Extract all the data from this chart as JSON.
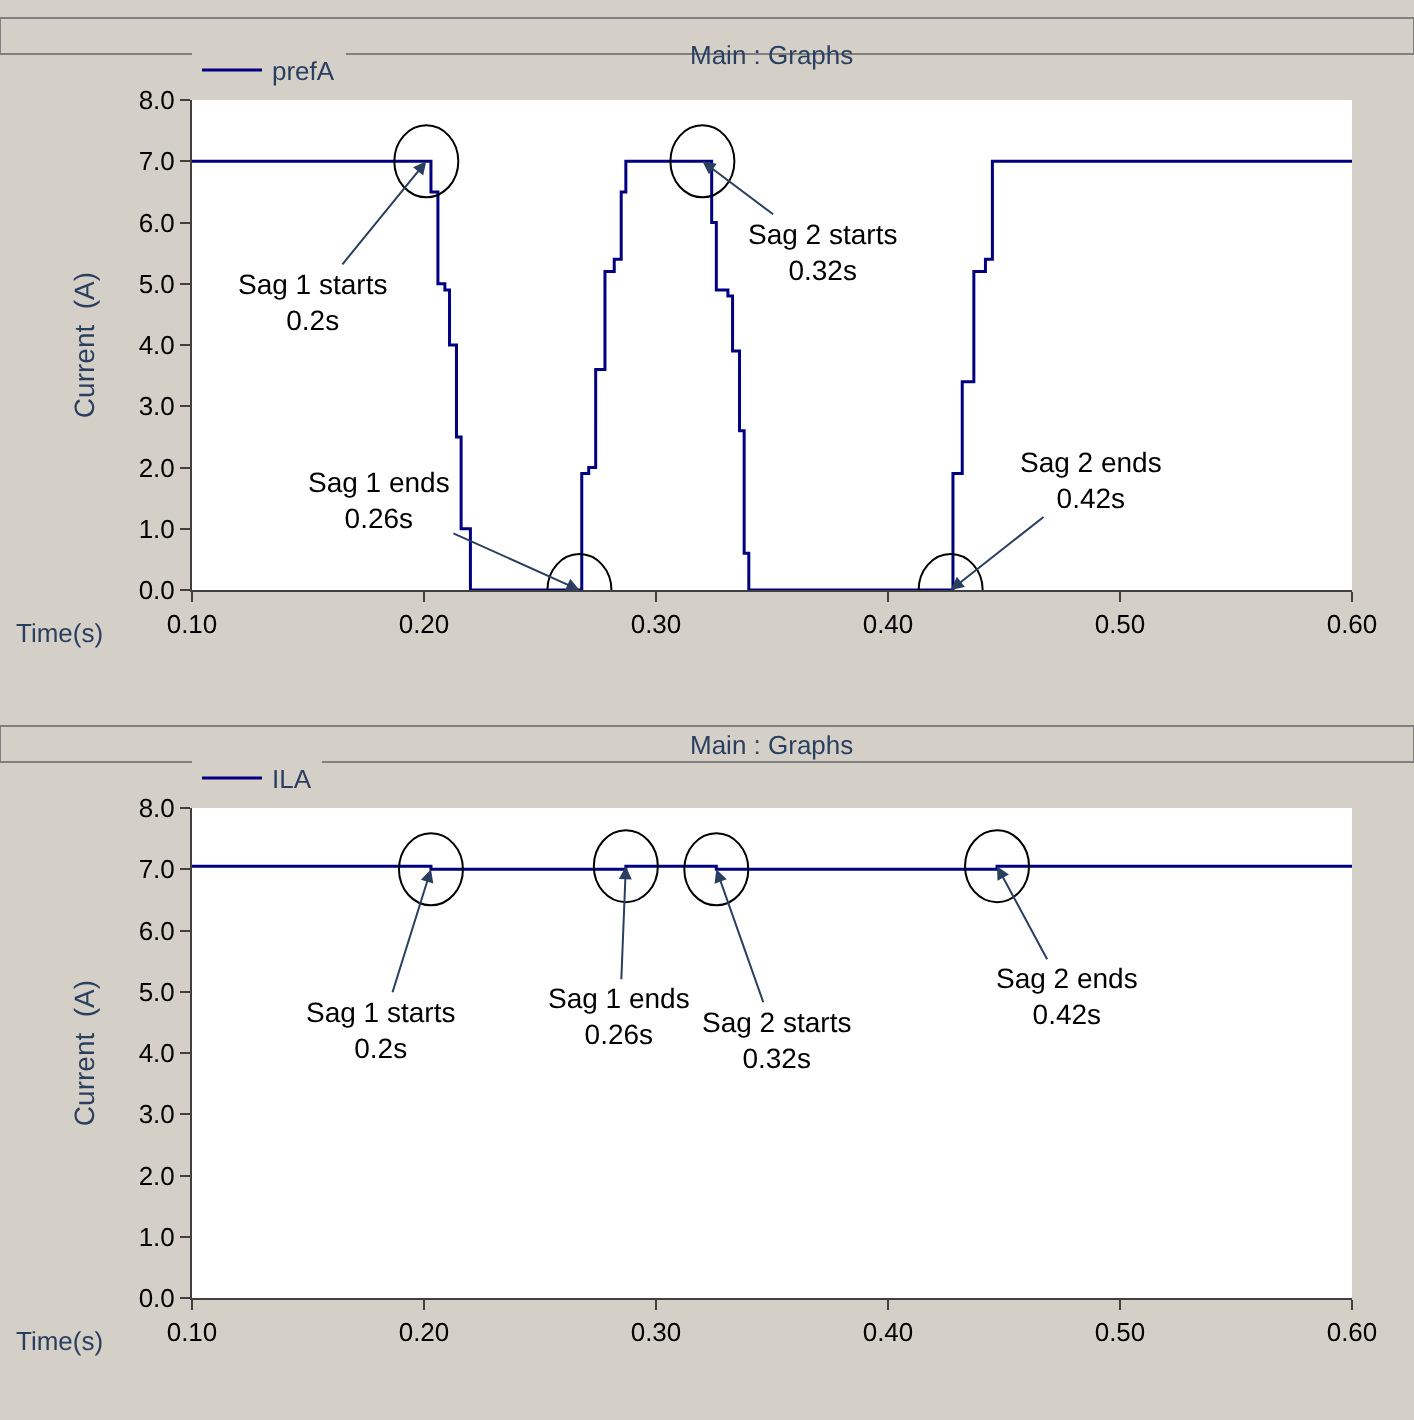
{
  "chart_data": [
    {
      "type": "step",
      "title": "Main : Graphs",
      "xlabel": "Time(s)",
      "ylabel": "Current  (A)",
      "legend": "top left",
      "x": [
        0.1,
        0.201,
        0.203,
        0.206,
        0.209,
        0.211,
        0.214,
        0.216,
        0.22,
        0.267,
        0.268,
        0.271,
        0.274,
        0.278,
        0.282,
        0.285,
        0.287,
        0.32,
        0.324,
        0.326,
        0.331,
        0.333,
        0.336,
        0.338,
        0.34,
        0.427,
        0.428,
        0.432,
        0.437,
        0.442,
        0.445,
        0.6
      ],
      "series": [
        {
          "name": "prefA",
          "color": "#000080",
          "values": [
            7.0,
            7.0,
            6.5,
            5.0,
            4.9,
            4.0,
            2.5,
            1.0,
            0.0,
            0.0,
            1.9,
            2.0,
            3.6,
            5.2,
            5.4,
            6.5,
            7.0,
            7.0,
            6.0,
            4.9,
            4.8,
            3.9,
            2.6,
            0.6,
            0.0,
            0.0,
            1.9,
            3.4,
            5.2,
            5.4,
            7.0,
            7.0
          ]
        }
      ],
      "xlim": [
        0.1,
        0.6
      ],
      "xticks": [
        {
          "value": 0.1,
          "label": "0.10"
        },
        {
          "value": 0.2,
          "label": "0.20"
        },
        {
          "value": 0.3,
          "label": "0.30"
        },
        {
          "value": 0.4,
          "label": "0.40"
        },
        {
          "value": 0.5,
          "label": "0.50"
        },
        {
          "value": 0.6,
          "label": "0.60"
        }
      ],
      "ylim": [
        0,
        8
      ],
      "yticks": [
        {
          "value": 0,
          "label": "0.0"
        },
        {
          "value": 1,
          "label": "1.0"
        },
        {
          "value": 2,
          "label": "2.0"
        },
        {
          "value": 3,
          "label": "3.0"
        },
        {
          "value": 4,
          "label": "4.0"
        },
        {
          "value": 5,
          "label": "5.0"
        },
        {
          "value": 6,
          "label": "6.0"
        },
        {
          "value": 7,
          "label": "7.0"
        },
        {
          "value": 8,
          "label": "8.0"
        }
      ],
      "annotations": [
        {
          "text": "Sag 1 starts\n0.2s",
          "x": 0.201,
          "y": 7.0
        },
        {
          "text": "Sag 1 ends\n0.26s",
          "x": 0.267,
          "y": 0.0
        },
        {
          "text": "Sag 2 starts\n0.32s",
          "x": 0.32,
          "y": 7.0
        },
        {
          "text": "Sag 2 ends\n0.42s",
          "x": 0.427,
          "y": 0.0
        }
      ]
    },
    {
      "type": "step",
      "title": "Main : Graphs",
      "xlabel": "Time(s)",
      "ylabel": "Current  (A)",
      "legend": "top left",
      "x": [
        0.1,
        0.203,
        0.287,
        0.326,
        0.447,
        0.6
      ],
      "series": [
        {
          "name": "ILA",
          "color": "#000080",
          "values": [
            7.05,
            7.0,
            7.05,
            7.0,
            7.05,
            7.05
          ]
        }
      ],
      "xlim": [
        0.1,
        0.6
      ],
      "xticks": [
        {
          "value": 0.1,
          "label": "0.10"
        },
        {
          "value": 0.2,
          "label": "0.20"
        },
        {
          "value": 0.3,
          "label": "0.30"
        },
        {
          "value": 0.4,
          "label": "0.40"
        },
        {
          "value": 0.5,
          "label": "0.50"
        },
        {
          "value": 0.6,
          "label": "0.60"
        }
      ],
      "ylim": [
        0,
        8
      ],
      "yticks": [
        {
          "value": 0,
          "label": "0.0"
        },
        {
          "value": 1,
          "label": "1.0"
        },
        {
          "value": 2,
          "label": "2.0"
        },
        {
          "value": 3,
          "label": "3.0"
        },
        {
          "value": 4,
          "label": "4.0"
        },
        {
          "value": 5,
          "label": "5.0"
        },
        {
          "value": 6,
          "label": "6.0"
        },
        {
          "value": 7,
          "label": "7.0"
        },
        {
          "value": 8,
          "label": "8.0"
        }
      ],
      "annotations": [
        {
          "text": "Sag 1 starts\n0.2s",
          "x": 0.203,
          "y": 7.0
        },
        {
          "text": "Sag 1 ends\n0.26s",
          "x": 0.287,
          "y": 7.05
        },
        {
          "text": "Sag 2 starts\n0.32s",
          "x": 0.326,
          "y": 7.0
        },
        {
          "text": "Sag 2 ends\n0.42s",
          "x": 0.447,
          "y": 7.05
        }
      ]
    }
  ]
}
